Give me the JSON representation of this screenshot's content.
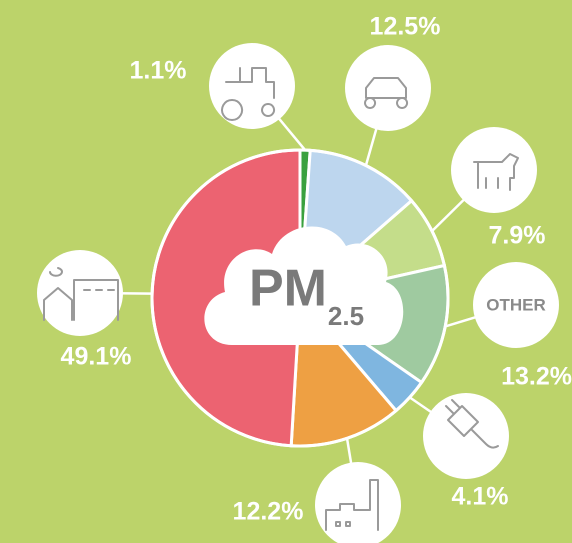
{
  "chart_data": {
    "type": "pie",
    "center_label": "PM",
    "center_sublabel": "2.5",
    "categories": [
      null,
      null,
      null,
      "OTHER",
      null,
      null,
      null
    ],
    "values": [
      1.1,
      12.5,
      7.9,
      13.2,
      4.1,
      12.2,
      49.1
    ],
    "value_labels": [
      "1.1%",
      "12.5%",
      "7.9%",
      "13.2%",
      "4.1%",
      "12.2%",
      "49.1%"
    ],
    "colors": [
      "#3aa13f",
      "#bdd6ee",
      "#c4dd8a",
      "#9fcaa0",
      "#7fb6e0",
      "#eea043",
      "#ec6371"
    ]
  }
}
